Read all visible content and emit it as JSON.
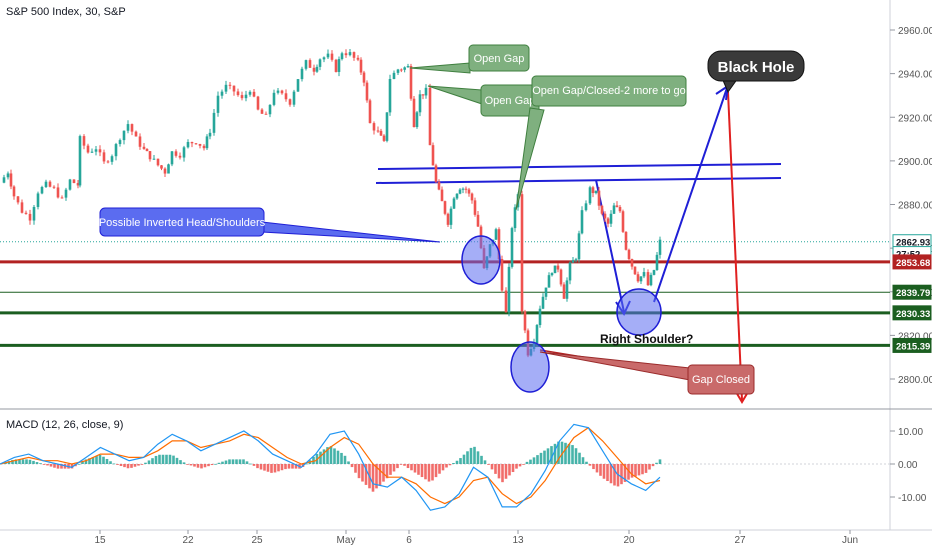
{
  "header": {
    "symbol_title": "S&P 500 Index, 30, S&P",
    "indicator_title": "MACD (12, 26, close, 9)"
  },
  "colors": {
    "up": "#26a69a",
    "down": "#ef5350",
    "macd_line": "#2196f3",
    "signal_line": "#ff6d00",
    "red_level": "#b22222",
    "green_level": "#1b5e20",
    "blue_trend": "#1f1fd6",
    "callout_green": "#7fb07f",
    "callout_blue": "#5b6cf0",
    "callout_red": "#c96a6a",
    "black_hole": "#3a3a3a"
  },
  "chart_data": [
    {
      "type": "candlestick",
      "title": "S&P 500 Index, 30, S&P",
      "x_tick_labels": [
        "15",
        "22",
        "25",
        "May",
        "6",
        "13",
        "20",
        "27",
        "Jun"
      ],
      "y_tick_labels": [
        "2960.00",
        "2940.00",
        "2920.00",
        "2900.00",
        "2880.00",
        "2860.00",
        "2840.00",
        "2820.00",
        "2800.00"
      ],
      "ylim": [
        2785,
        2972
      ],
      "grid": false,
      "price_labels": [
        {
          "text": "2862.93",
          "value": 2862.93,
          "kind": "current"
        },
        {
          "text": "27:52",
          "value": 2857.5,
          "kind": "countdown"
        },
        {
          "text": "2853.68",
          "value": 2853.68,
          "kind": "red_level"
        },
        {
          "text": "2839.79",
          "value": 2839.79,
          "kind": "green_level"
        },
        {
          "text": "2830.33",
          "value": 2830.33,
          "kind": "green_level"
        },
        {
          "text": "2815.39",
          "value": 2815.39,
          "kind": "green_level"
        }
      ],
      "horizontal_levels": [
        {
          "value": 2862.93,
          "style": "dotted-teal"
        },
        {
          "value": 2853.68,
          "style": "red-thick"
        },
        {
          "value": 2839.79,
          "style": "green-thin"
        },
        {
          "value": 2830.33,
          "style": "green-thick"
        },
        {
          "value": 2815.39,
          "style": "green-thick"
        }
      ],
      "price_path": [
        [
          0,
          2890
        ],
        [
          8,
          2895
        ],
        [
          14,
          2884
        ],
        [
          22,
          2877
        ],
        [
          30,
          2874
        ],
        [
          38,
          2886
        ],
        [
          46,
          2889
        ],
        [
          54,
          2887
        ],
        [
          62,
          2882
        ],
        [
          70,
          2891
        ],
        [
          78,
          2889
        ],
        [
          80,
          2910
        ],
        [
          88,
          2904
        ],
        [
          96,
          2906
        ],
        [
          104,
          2899
        ],
        [
          112,
          2903
        ],
        [
          120,
          2911
        ],
        [
          128,
          2917
        ],
        [
          136,
          2910
        ],
        [
          144,
          2905
        ],
        [
          150,
          2902
        ],
        [
          158,
          2898
        ],
        [
          165,
          2895
        ],
        [
          172,
          2904
        ],
        [
          180,
          2903
        ],
        [
          188,
          2908
        ],
        [
          196,
          2909
        ],
        [
          204,
          2906
        ],
        [
          210,
          2914
        ],
        [
          218,
          2930
        ],
        [
          226,
          2934
        ],
        [
          234,
          2932
        ],
        [
          242,
          2928
        ],
        [
          250,
          2933
        ],
        [
          258,
          2923
        ],
        [
          266,
          2920
        ],
        [
          274,
          2932
        ],
        [
          282,
          2930
        ],
        [
          290,
          2927
        ],
        [
          298,
          2938
        ],
        [
          306,
          2945
        ],
        [
          314,
          2942
        ],
        [
          320,
          2947
        ],
        [
          328,
          2948
        ],
        [
          336,
          2942
        ],
        [
          342,
          2950
        ],
        [
          350,
          2949
        ],
        [
          358,
          2945
        ],
        [
          364,
          2937
        ],
        [
          370,
          2917
        ],
        [
          378,
          2913
        ],
        [
          384,
          2908
        ],
        [
          390,
          2938
        ],
        [
          398,
          2942
        ],
        [
          408,
          2943
        ],
        [
          414,
          2917
        ],
        [
          420,
          2930
        ],
        [
          426,
          2932
        ],
        [
          430,
          2907
        ],
        [
          436,
          2890
        ],
        [
          442,
          2881
        ],
        [
          448,
          2872
        ],
        [
          454,
          2884
        ],
        [
          460,
          2888
        ],
        [
          466,
          2887
        ],
        [
          472,
          2882
        ],
        [
          478,
          2870
        ],
        [
          484,
          2850
        ],
        [
          490,
          2861
        ],
        [
          496,
          2868
        ],
        [
          502,
          2842
        ],
        [
          506,
          2830
        ],
        [
          512,
          2870
        ],
        [
          518,
          2885
        ],
        [
          522,
          2832
        ],
        [
          528,
          2812
        ],
        [
          534,
          2818
        ],
        [
          540,
          2833
        ],
        [
          546,
          2843
        ],
        [
          552,
          2850
        ],
        [
          558,
          2851
        ],
        [
          564,
          2838
        ],
        [
          570,
          2852
        ],
        [
          576,
          2856
        ],
        [
          582,
          2876
        ],
        [
          590,
          2887
        ],
        [
          596,
          2885
        ],
        [
          602,
          2875
        ],
        [
          608,
          2871
        ],
        [
          614,
          2879
        ],
        [
          620,
          2877
        ],
        [
          626,
          2860
        ],
        [
          632,
          2852
        ],
        [
          638,
          2846
        ],
        [
          644,
          2848
        ],
        [
          648,
          2843
        ],
        [
          654,
          2850
        ],
        [
          660,
          2863
        ]
      ],
      "annotations": [
        {
          "text": "Open Gap",
          "kind": "callout"
        },
        {
          "text": "Open Gap",
          "kind": "callout"
        },
        {
          "text": "Open Gap/Closed-2 more to go",
          "kind": "callout"
        },
        {
          "text": "Black Hole",
          "kind": "callout"
        },
        {
          "text": "Possible Inverted Head/Shoulders",
          "kind": "callout"
        },
        {
          "text": "Right Shoulder?",
          "kind": "text"
        },
        {
          "text": "Gap Closed",
          "kind": "callout"
        }
      ]
    },
    {
      "type": "line",
      "title": "MACD (12, 26, close, 9)",
      "y_tick_labels": [
        "10.00",
        "0.00",
        "-10.00"
      ],
      "ylim": [
        -16,
        13
      ],
      "series": [
        {
          "name": "MACD",
          "values": [
            0,
            2,
            3,
            1,
            0,
            -1,
            2,
            5,
            3,
            1,
            2,
            6,
            9,
            7,
            4,
            6,
            8,
            10,
            7,
            3,
            1,
            -1,
            3,
            9,
            10,
            3,
            -6,
            -7,
            -4,
            -8,
            -14,
            -13,
            -9,
            -1,
            -4,
            -13,
            -13,
            -9,
            -2,
            7,
            12,
            11,
            4,
            -3,
            -6,
            -8,
            -4
          ]
        },
        {
          "name": "Signal",
          "values": [
            0,
            1,
            2,
            1,
            1,
            0,
            1,
            3,
            3,
            2,
            2,
            4,
            7,
            7,
            5,
            6,
            7,
            9,
            8,
            5,
            2,
            0,
            1,
            5,
            8,
            6,
            0,
            -4,
            -4,
            -6,
            -10,
            -12,
            -10,
            -5,
            -4,
            -9,
            -12,
            -10,
            -5,
            2,
            8,
            11,
            7,
            2,
            -3,
            -6,
            -5
          ]
        }
      ]
    }
  ]
}
